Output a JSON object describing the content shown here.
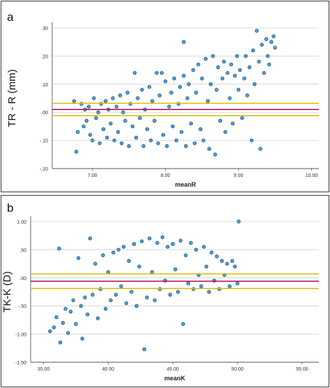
{
  "chart_data": [
    {
      "panel_label": "a",
      "type": "scatter",
      "xlabel": "meanR",
      "ylabel": "TR - R (mm)",
      "xlim": [
        6.45,
        10.1
      ],
      "ylim": [
        -0.2,
        0.3
      ],
      "x_ticks": [
        {
          "value": 7.0,
          "label": "7.00"
        },
        {
          "value": 8.0,
          "label": "8.00"
        },
        {
          "value": 9.0,
          "label": "9.00"
        },
        {
          "value": 10.0,
          "label": "10.00"
        }
      ],
      "y_ticks": [
        {
          "value": 0.3,
          "label": ".30"
        },
        {
          "value": 0.2,
          "label": ".20"
        },
        {
          "value": 0.1,
          "label": ".10"
        },
        {
          "value": 0.0,
          "label": ".00"
        },
        {
          "value": -0.1,
          "label": "-.10"
        },
        {
          "value": -0.2,
          "label": "-.20"
        }
      ],
      "grid": "horizontal",
      "reference_lines": [
        {
          "value": 0.032,
          "color": "#d6c21b"
        },
        {
          "value": 0.01,
          "color": "#b0185a"
        },
        {
          "value": -0.012,
          "color": "#d6c21b"
        }
      ],
      "point_color": "#4aa3df",
      "point_edge_color": "#17374f",
      "series": [
        {
          "points": [
            [
              6.75,
              0.04
            ],
            [
              6.78,
              -0.14
            ],
            [
              6.8,
              -0.07
            ],
            [
              6.85,
              0.03
            ],
            [
              6.88,
              -0.05
            ],
            [
              6.9,
              0.01
            ],
            [
              6.92,
              -0.03
            ],
            [
              6.95,
              0.02
            ],
            [
              6.97,
              -0.08
            ],
            [
              7.0,
              -0.1
            ],
            [
              7.02,
              0.05
            ],
            [
              7.05,
              -0.02
            ],
            [
              7.08,
              0.0
            ],
            [
              7.1,
              -0.11
            ],
            [
              7.12,
              0.03
            ],
            [
              7.15,
              -0.06
            ],
            [
              7.18,
              0.04
            ],
            [
              7.2,
              -0.09
            ],
            [
              7.22,
              0.01
            ],
            [
              7.25,
              -0.04
            ],
            [
              7.28,
              0.05
            ],
            [
              7.3,
              -0.1
            ],
            [
              7.33,
              0.02
            ],
            [
              7.35,
              -0.07
            ],
            [
              7.38,
              0.06
            ],
            [
              7.4,
              -0.11
            ],
            [
              7.42,
              0.0
            ],
            [
              7.45,
              -0.03
            ],
            [
              7.48,
              0.07
            ],
            [
              7.5,
              -0.12
            ],
            [
              7.52,
              0.03
            ],
            [
              7.55,
              -0.05
            ],
            [
              7.58,
              0.14
            ],
            [
              7.6,
              -0.09
            ],
            [
              7.62,
              0.05
            ],
            [
              7.65,
              -0.02
            ],
            [
              7.68,
              0.08
            ],
            [
              7.7,
              -0.12
            ],
            [
              7.72,
              0.01
            ],
            [
              7.75,
              -0.06
            ],
            [
              7.78,
              0.09
            ],
            [
              7.8,
              -0.1
            ],
            [
              7.82,
              0.04
            ],
            [
              7.85,
              -0.03
            ],
            [
              7.88,
              0.14
            ],
            [
              7.9,
              -0.11
            ],
            [
              7.92,
              0.06
            ],
            [
              7.95,
              0.14
            ],
            [
              7.97,
              -0.08
            ],
            [
              8.0,
              0.11
            ],
            [
              8.02,
              -0.12
            ],
            [
              8.05,
              0.02
            ],
            [
              8.08,
              0.07
            ],
            [
              8.1,
              -0.05
            ],
            [
              8.12,
              0.12
            ],
            [
              8.15,
              -0.1
            ],
            [
              8.18,
              0.03
            ],
            [
              8.2,
              0.09
            ],
            [
              8.22,
              -0.07
            ],
            [
              8.25,
              0.13
            ],
            [
              8.28,
              -0.12
            ],
            [
              8.3,
              0.05
            ],
            [
              8.32,
              0.1
            ],
            [
              8.35,
              -0.04
            ],
            [
              8.38,
              0.15
            ],
            [
              8.4,
              -0.11
            ],
            [
              8.42,
              0.07
            ],
            [
              8.45,
              0.17
            ],
            [
              8.48,
              -0.06
            ],
            [
              8.5,
              0.12
            ],
            [
              8.52,
              -0.1
            ],
            [
              8.55,
              0.19
            ],
            [
              8.58,
              0.04
            ],
            [
              8.6,
              -0.13
            ],
            [
              8.62,
              0.1
            ],
            [
              8.65,
              0.2
            ],
            [
              8.68,
              -0.15
            ],
            [
              8.7,
              0.08
            ],
            [
              8.72,
              0.16
            ],
            [
              8.75,
              -0.03
            ],
            [
              8.78,
              0.12
            ],
            [
              8.8,
              0.18
            ],
            [
              8.82,
              -0.07
            ],
            [
              8.85,
              0.14
            ],
            [
              8.88,
              0.05
            ],
            [
              8.9,
              0.17
            ],
            [
              8.92,
              -0.04
            ],
            [
              8.95,
              0.13
            ],
            [
              8.98,
              0.2
            ],
            [
              9.0,
              0.08
            ],
            [
              9.02,
              0.15
            ],
            [
              9.05,
              -0.02
            ],
            [
              9.08,
              0.12
            ],
            [
              9.1,
              0.2
            ],
            [
              9.12,
              0.06
            ],
            [
              9.15,
              0.16
            ],
            [
              9.18,
              -0.1
            ],
            [
              9.2,
              0.22
            ],
            [
              9.22,
              0.1
            ],
            [
              9.25,
              0.29
            ],
            [
              9.28,
              0.18
            ],
            [
              9.3,
              -0.13
            ],
            [
              9.32,
              0.24
            ],
            [
              9.35,
              0.14
            ],
            [
              9.38,
              0.26
            ],
            [
              9.4,
              0.2
            ],
            [
              9.42,
              0.17
            ],
            [
              9.45,
              0.25
            ],
            [
              9.48,
              0.27
            ],
            [
              9.5,
              0.23
            ],
            [
              8.25,
              0.25
            ]
          ]
        }
      ]
    },
    {
      "panel_label": "b",
      "type": "scatter",
      "xlabel": "meanK",
      "ylabel": "TK-K (D)",
      "xlim": [
        34.0,
        56.3
      ],
      "ylim": [
        -1.5,
        1.0
      ],
      "x_ticks": [
        {
          "value": 35.0,
          "label": "35.00"
        },
        {
          "value": 40.0,
          "label": "40.00"
        },
        {
          "value": 45.0,
          "label": "45.00"
        },
        {
          "value": 50.0,
          "label": "50.00"
        },
        {
          "value": 55.0,
          "label": "55.00"
        }
      ],
      "y_ticks": [
        {
          "value": 1.0,
          "label": "1.00"
        },
        {
          "value": 0.5,
          "label": ".50"
        },
        {
          "value": 0.0,
          "label": ".00"
        },
        {
          "value": -0.5,
          "label": "-.50"
        },
        {
          "value": -1.0,
          "label": "-1.00"
        },
        {
          "value": -1.5,
          "label": "-1.50"
        }
      ],
      "grid": "horizontal",
      "reference_lines": [
        {
          "value": 0.07,
          "color": "#d6c21b"
        },
        {
          "value": -0.06,
          "color": "#b0185a"
        },
        {
          "value": -0.19,
          "color": "#d6c21b"
        }
      ],
      "point_color": "#4aa3df",
      "point_edge_color": "#17374f",
      "series": [
        {
          "points": [
            [
              35.5,
              -0.95
            ],
            [
              35.8,
              -0.88
            ],
            [
              36.0,
              -0.7
            ],
            [
              36.2,
              0.52
            ],
            [
              36.3,
              -1.15
            ],
            [
              36.5,
              -0.8
            ],
            [
              36.7,
              -0.55
            ],
            [
              36.9,
              -0.98
            ],
            [
              37.1,
              -0.6
            ],
            [
              37.3,
              -0.4
            ],
            [
              37.5,
              -0.82
            ],
            [
              37.7,
              0.35
            ],
            [
              37.9,
              -0.5
            ],
            [
              38.0,
              -1.08
            ],
            [
              38.2,
              -0.35
            ],
            [
              38.4,
              -0.65
            ],
            [
              38.6,
              0.7
            ],
            [
              38.8,
              -0.3
            ],
            [
              39.0,
              0.25
            ],
            [
              39.2,
              -0.72
            ],
            [
              39.4,
              -0.2
            ],
            [
              39.6,
              0.4
            ],
            [
              39.8,
              -0.55
            ],
            [
              40.0,
              0.1
            ],
            [
              40.2,
              -0.4
            ],
            [
              40.4,
              0.45
            ],
            [
              40.6,
              -0.3
            ],
            [
              40.8,
              0.5
            ],
            [
              41.0,
              -0.15
            ],
            [
              41.2,
              0.55
            ],
            [
              41.4,
              -0.45
            ],
            [
              41.6,
              0.3
            ],
            [
              41.8,
              -0.25
            ],
            [
              42.0,
              0.6
            ],
            [
              42.2,
              -0.5
            ],
            [
              42.4,
              0.2
            ],
            [
              42.6,
              0.65
            ],
            [
              42.8,
              -1.27
            ],
            [
              43.0,
              -0.35
            ],
            [
              43.2,
              0.7
            ],
            [
              43.4,
              0.1
            ],
            [
              43.6,
              -0.4
            ],
            [
              43.8,
              0.62
            ],
            [
              44.0,
              -0.2
            ],
            [
              44.2,
              0.72
            ],
            [
              44.4,
              -0.05
            ],
            [
              44.6,
              0.55
            ],
            [
              44.8,
              -0.3
            ],
            [
              45.0,
              0.6
            ],
            [
              45.2,
              0.15
            ],
            [
              45.4,
              -0.25
            ],
            [
              45.6,
              0.66
            ],
            [
              45.8,
              -0.82
            ],
            [
              46.0,
              0.4
            ],
            [
              46.2,
              -0.1
            ],
            [
              46.4,
              0.62
            ],
            [
              46.6,
              -0.2
            ],
            [
              46.8,
              0.5
            ],
            [
              47.0,
              0.05
            ],
            [
              47.2,
              -0.15
            ],
            [
              47.4,
              0.55
            ],
            [
              47.6,
              0.2
            ],
            [
              47.8,
              -0.25
            ],
            [
              48.0,
              0.45
            ],
            [
              48.2,
              -0.05
            ],
            [
              48.4,
              0.38
            ],
            [
              48.6,
              -0.2
            ],
            [
              48.8,
              0.3
            ],
            [
              49.0,
              0.05
            ],
            [
              49.2,
              0.25
            ],
            [
              49.4,
              -0.15
            ],
            [
              49.6,
              0.3
            ],
            [
              49.8,
              0.2
            ],
            [
              50.0,
              -0.1
            ],
            [
              50.1,
              1.0
            ]
          ]
        }
      ]
    }
  ]
}
